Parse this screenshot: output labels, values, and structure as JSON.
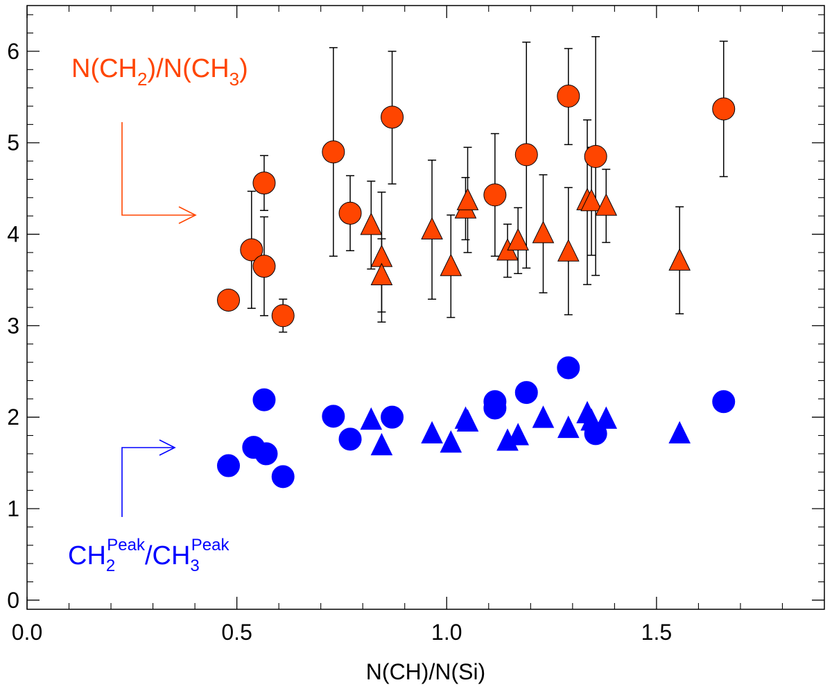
{
  "chart_data": {
    "type": "scatter",
    "title": "",
    "xlabel": "N(CH)/N(Si)",
    "ylabel": "",
    "xlim": [
      0.0,
      1.9
    ],
    "ylim": [
      -0.1,
      6.5
    ],
    "grid": false,
    "x_ticks": [
      0.0,
      0.5,
      1.0,
      1.5
    ],
    "x_tick_labels": [
      "0.0",
      "0.5",
      "1.0",
      "1.5"
    ],
    "y_ticks": [
      0,
      1,
      2,
      3,
      4,
      5,
      6
    ],
    "y_tick_labels": [
      "0",
      "1",
      "2",
      "3",
      "4",
      "5",
      "6"
    ],
    "colors": {
      "orange": "#ff4500",
      "blue": "#0000ff",
      "errorbar": "#000000"
    },
    "annotations": {
      "ratio": {
        "main1": "N(CH",
        "sub1": "2",
        "main2": ")/N(CH",
        "sub2": "3",
        "main3": ")"
      },
      "peak": {
        "main1": "CH",
        "sub1": "2",
        "sup1": "Peak",
        "main2": "/CH",
        "sub2": "3",
        "sup2": "Peak"
      }
    },
    "series": [
      {
        "name": "N(CH2)/N(CH3) circles",
        "marker": "circle",
        "color": "#ff4500",
        "points": [
          {
            "x": 0.48,
            "y": 3.28,
            "lo": 3.17,
            "hi": 3.38
          },
          {
            "x": 0.535,
            "y": 3.83,
            "lo": 3.19,
            "hi": 4.47
          },
          {
            "x": 0.565,
            "y": 4.56,
            "lo": 4.26,
            "hi": 4.86
          },
          {
            "x": 0.565,
            "y": 3.65,
            "lo": 3.11,
            "hi": 4.19
          },
          {
            "x": 0.61,
            "y": 3.11,
            "lo": 2.93,
            "hi": 3.29
          },
          {
            "x": 0.73,
            "y": 4.9,
            "lo": 3.76,
            "hi": 6.04
          },
          {
            "x": 0.77,
            "y": 4.23,
            "lo": 3.82,
            "hi": 4.64
          },
          {
            "x": 0.87,
            "y": 5.28,
            "lo": 4.55,
            "hi": 6.0
          },
          {
            "x": 1.115,
            "y": 4.43,
            "lo": 3.76,
            "hi": 5.1
          },
          {
            "x": 1.19,
            "y": 4.87,
            "lo": 3.63,
            "hi": 6.1
          },
          {
            "x": 1.29,
            "y": 5.51,
            "lo": 4.98,
            "hi": 6.03
          },
          {
            "x": 1.355,
            "y": 4.85,
            "lo": 3.55,
            "hi": 6.16
          },
          {
            "x": 1.66,
            "y": 5.37,
            "lo": 4.63,
            "hi": 6.11
          }
        ]
      },
      {
        "name": "N(CH2)/N(CH3) triangles",
        "marker": "triangle",
        "color": "#ff4500",
        "points": [
          {
            "x": 0.82,
            "y": 4.1,
            "lo": 3.62,
            "hi": 4.58
          },
          {
            "x": 0.845,
            "y": 3.75,
            "lo": 3.04,
            "hi": 4.46
          },
          {
            "x": 0.845,
            "y": 3.55,
            "lo": 3.15,
            "hi": 3.95
          },
          {
            "x": 0.965,
            "y": 4.05,
            "lo": 3.29,
            "hi": 4.81
          },
          {
            "x": 1.01,
            "y": 3.65,
            "lo": 3.09,
            "hi": 4.21
          },
          {
            "x": 1.045,
            "y": 4.28,
            "lo": 3.94,
            "hi": 4.62
          },
          {
            "x": 1.05,
            "y": 4.37,
            "lo": 3.8,
            "hi": 4.95
          },
          {
            "x": 1.145,
            "y": 3.82,
            "lo": 3.53,
            "hi": 4.11
          },
          {
            "x": 1.17,
            "y": 3.93,
            "lo": 3.57,
            "hi": 4.29
          },
          {
            "x": 1.23,
            "y": 4.01,
            "lo": 3.36,
            "hi": 4.65
          },
          {
            "x": 1.29,
            "y": 3.81,
            "lo": 3.12,
            "hi": 4.51
          },
          {
            "x": 1.335,
            "y": 4.37,
            "lo": 3.45,
            "hi": 5.25
          },
          {
            "x": 1.345,
            "y": 4.36,
            "lo": 3.77,
            "hi": 4.95
          },
          {
            "x": 1.38,
            "y": 4.31,
            "lo": 3.91,
            "hi": 4.71
          },
          {
            "x": 1.555,
            "y": 3.71,
            "lo": 3.13,
            "hi": 4.3
          }
        ]
      },
      {
        "name": "CH2Peak/CH3Peak circles",
        "marker": "circle",
        "color": "#0000ff",
        "points": [
          {
            "x": 0.48,
            "y": 1.47
          },
          {
            "x": 0.54,
            "y": 1.67
          },
          {
            "x": 0.565,
            "y": 2.19
          },
          {
            "x": 0.57,
            "y": 1.6
          },
          {
            "x": 0.61,
            "y": 1.35
          },
          {
            "x": 0.73,
            "y": 2.01
          },
          {
            "x": 0.77,
            "y": 1.76
          },
          {
            "x": 0.87,
            "y": 2.0
          },
          {
            "x": 1.115,
            "y": 2.1
          },
          {
            "x": 1.115,
            "y": 2.17
          },
          {
            "x": 1.19,
            "y": 2.27
          },
          {
            "x": 1.29,
            "y": 2.54
          },
          {
            "x": 1.355,
            "y": 1.82
          },
          {
            "x": 1.66,
            "y": 2.17
          }
        ]
      },
      {
        "name": "CH2Peak/CH3Peak triangles",
        "marker": "triangle",
        "color": "#0000ff",
        "points": [
          {
            "x": 0.82,
            "y": 1.97
          },
          {
            "x": 0.845,
            "y": 1.69
          },
          {
            "x": 0.965,
            "y": 1.82
          },
          {
            "x": 1.01,
            "y": 1.72
          },
          {
            "x": 1.045,
            "y": 1.98
          },
          {
            "x": 1.05,
            "y": 1.95
          },
          {
            "x": 1.145,
            "y": 1.74
          },
          {
            "x": 1.17,
            "y": 1.8
          },
          {
            "x": 1.23,
            "y": 1.99
          },
          {
            "x": 1.29,
            "y": 1.88
          },
          {
            "x": 1.335,
            "y": 2.04
          },
          {
            "x": 1.345,
            "y": 1.96
          },
          {
            "x": 1.38,
            "y": 1.98
          },
          {
            "x": 1.555,
            "y": 1.82
          }
        ]
      }
    ]
  }
}
